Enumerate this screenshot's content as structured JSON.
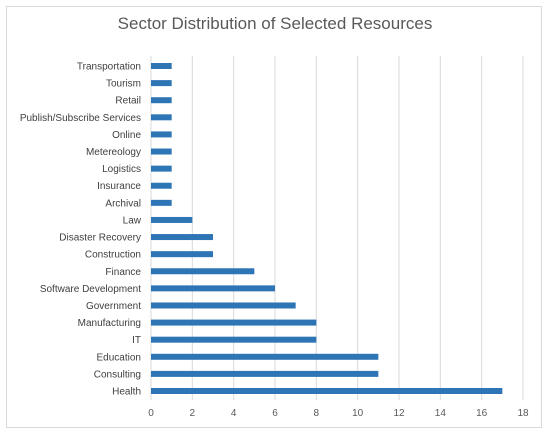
{
  "chart_data": {
    "type": "bar",
    "orientation": "horizontal",
    "title": "Sector Distribution of Selected Resources",
    "xlabel": "",
    "ylabel": "",
    "xlim": [
      0,
      18
    ],
    "xticks": [
      0,
      2,
      4,
      6,
      8,
      10,
      12,
      14,
      16,
      18
    ],
    "grid": true,
    "bar_color": "#2e75b6",
    "categories": [
      "Transportation",
      "Tourism",
      "Retail",
      "Publish/Subscribe Services",
      "Online",
      "Metereology",
      "Logistics",
      "Insurance",
      "Archival",
      "Law",
      "Disaster Recovery",
      "Construction",
      "Finance",
      "Software Development",
      "Government",
      "Manufacturing",
      "IT",
      "Education",
      "Consulting",
      "Health"
    ],
    "values": [
      1,
      1,
      1,
      1,
      1,
      1,
      1,
      1,
      1,
      2,
      3,
      3,
      5,
      6,
      7,
      8,
      8,
      11,
      11,
      17
    ]
  }
}
